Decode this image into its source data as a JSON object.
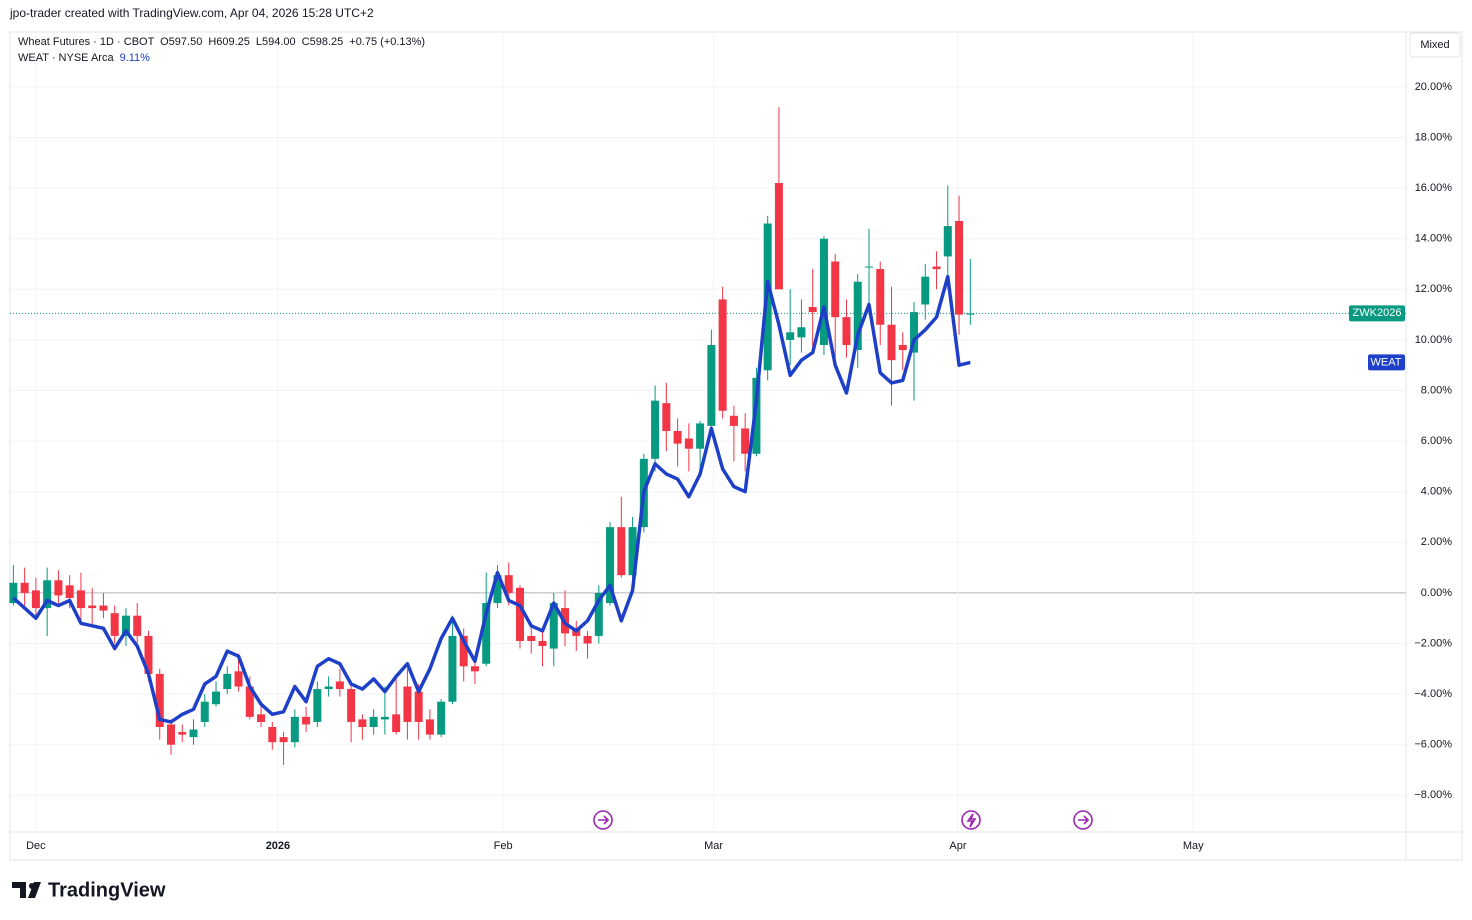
{
  "attribution": "jpo-trader created with TradingView.com, Apr 04, 2026 15:28 UTC+2",
  "footer": {
    "brand": "TradingView"
  },
  "chart_data": {
    "type": "candlestick",
    "legend": {
      "symbol": "Wheat Futures · 1D · CBOT",
      "open": "O597.50",
      "high": "H609.25",
      "low": "L594.00",
      "close": "C598.25",
      "change": "+0.75 (+0.13%)"
    },
    "scale_mode": "Mixed",
    "price_tag": "ZWK2026",
    "up_color": "#089981",
    "down_color": "#f23645",
    "price_line_color": "#089981",
    "x": [
      0,
      1,
      2,
      3,
      4,
      5,
      6,
      7,
      8,
      9,
      10,
      11,
      12,
      13,
      14,
      15,
      16,
      17,
      18,
      19,
      20,
      21,
      22,
      23,
      24,
      25,
      26,
      27,
      28,
      29,
      30,
      31,
      32,
      33,
      34,
      35,
      36,
      37,
      38,
      39,
      40,
      41,
      42,
      43,
      44,
      45,
      46,
      47,
      48,
      49,
      50,
      51,
      52,
      53,
      54,
      55,
      56,
      57,
      58,
      59,
      60,
      61,
      62,
      63,
      64,
      65,
      66,
      67,
      68,
      69,
      70,
      71,
      72,
      73,
      74,
      75,
      76,
      77,
      78,
      79,
      80,
      81,
      82,
      83,
      84,
      85
    ],
    "open": [
      -0.4,
      0.4,
      0.1,
      -0.6,
      0.5,
      0.3,
      0.1,
      -0.5,
      -0.5,
      -0.8,
      -1.7,
      -0.9,
      -1.7,
      -3.2,
      -5.2,
      -5.5,
      -5.7,
      -5.1,
      -4.4,
      -3.8,
      -3.1,
      -3.7,
      -4.8,
      -5.3,
      -5.7,
      -5.9,
      -4.9,
      -5.1,
      -3.8,
      -3.5,
      -3.8,
      -5.0,
      -5.3,
      -5.0,
      -4.8,
      -3.7,
      -3.9,
      -5.0,
      -5.6,
      -4.3,
      -1.7,
      -2.9,
      -2.8,
      -0.4,
      0.7,
      0.2,
      -1.7,
      -1.9,
      -2.2,
      -0.6,
      -1.4,
      -1.7,
      -1.7,
      -0.4,
      2.6,
      0.7,
      2.6,
      5.3,
      7.5,
      6.4,
      6.1,
      5.7,
      6.6,
      11.6,
      7.0,
      6.5,
      5.5,
      8.8,
      16.2,
      10.0,
      10.1,
      11.3,
      9.8,
      13.1,
      10.9,
      9.6,
      12.9,
      12.8,
      10.6,
      9.8,
      9.5,
      11.4,
      12.9,
      13.3,
      14.7,
      11.0
    ],
    "high": [
      1.1,
      1.0,
      0.6,
      1.0,
      0.9,
      0.7,
      0.8,
      0.2,
      0.0,
      -0.5,
      -0.6,
      -0.4,
      -1.5,
      -3.0,
      -5.0,
      -5.2,
      -5.0,
      -4.0,
      -3.5,
      -2.9,
      -2.4,
      -3.3,
      -4.4,
      -5.1,
      -5.5,
      -4.6,
      -4.5,
      -3.5,
      -3.3,
      -3.0,
      -3.5,
      -4.8,
      -4.6,
      -3.7,
      -3.3,
      -3.0,
      -3.6,
      -4.6,
      -4.2,
      -0.9,
      -1.4,
      -2.6,
      0.8,
      1.1,
      1.2,
      0.3,
      -1.2,
      -1.5,
      0.0,
      0.1,
      -1.1,
      -1.5,
      0.3,
      2.8,
      3.8,
      3.0,
      5.5,
      8.2,
      8.3,
      6.9,
      6.7,
      6.8,
      10.4,
      12.1,
      7.4,
      7.1,
      8.9,
      14.9,
      19.2,
      12.0,
      11.6,
      12.8,
      14.1,
      13.4,
      11.6,
      12.6,
      14.4,
      13.1,
      12.1,
      10.3,
      11.5,
      13.0,
      13.5,
      16.1,
      15.7,
      13.2
    ],
    "low": [
      -0.5,
      -0.6,
      -1.0,
      -1.7,
      -0.5,
      -0.6,
      -1.2,
      -1.3,
      -1.0,
      -2.0,
      -2.1,
      -2.0,
      -3.5,
      -5.8,
      -6.4,
      -5.9,
      -6.0,
      -5.3,
      -4.5,
      -4.0,
      -3.9,
      -5.0,
      -5.3,
      -6.2,
      -6.8,
      -6.1,
      -5.5,
      -5.3,
      -4.1,
      -4.1,
      -5.9,
      -5.8,
      -5.6,
      -5.6,
      -5.6,
      -5.8,
      -5.8,
      -5.8,
      -5.7,
      -4.4,
      -3.5,
      -3.6,
      -2.9,
      -0.6,
      -0.5,
      -2.2,
      -2.4,
      -2.9,
      -2.9,
      -2.1,
      -2.3,
      -2.6,
      -2.0,
      -0.5,
      0.6,
      0.3,
      2.4,
      4.8,
      5.6,
      5.0,
      4.8,
      4.9,
      6.3,
      6.9,
      5.2,
      4.8,
      5.4,
      8.4,
      12.0,
      9.0,
      9.5,
      9.6,
      9.4,
      9.3,
      9.3,
      8.9,
      11.2,
      9.8,
      7.4,
      8.8,
      7.6,
      10.8,
      12.0,
      12.0,
      10.2,
      10.6
    ],
    "close": [
      0.4,
      0.0,
      -0.6,
      0.5,
      -0.1,
      -0.2,
      -0.6,
      -0.6,
      -0.7,
      -1.7,
      -0.9,
      -1.7,
      -3.2,
      -5.3,
      -6.0,
      -5.6,
      -5.4,
      -4.3,
      -3.9,
      -3.2,
      -3.7,
      -4.9,
      -5.1,
      -5.9,
      -5.9,
      -4.9,
      -5.2,
      -3.8,
      -3.7,
      -3.8,
      -5.1,
      -5.3,
      -4.9,
      -4.9,
      -5.5,
      -5.1,
      -5.1,
      -5.6,
      -4.3,
      -1.7,
      -2.9,
      -3.1,
      -0.4,
      0.7,
      0.0,
      -1.9,
      -1.9,
      -2.1,
      -0.4,
      -1.6,
      -1.7,
      -2.0,
      0.0,
      2.6,
      0.7,
      2.6,
      5.3,
      7.6,
      6.4,
      5.9,
      5.7,
      6.7,
      9.8,
      7.2,
      6.6,
      5.5,
      8.5,
      14.6,
      12.0,
      10.3,
      10.5,
      11.1,
      14.0,
      10.9,
      9.8,
      12.3,
      12.9,
      10.6,
      9.2,
      9.6,
      11.1,
      12.5,
      12.8,
      14.5,
      11.0,
      11.05
    ],
    "line": {
      "name": "WEAT · NYSE Arca",
      "tag": "WEAT",
      "color": "#1e40c8",
      "value_label": "9.11%",
      "values": [
        -0.2,
        -0.6,
        -1.0,
        -0.3,
        -0.5,
        -0.3,
        -1.2,
        -1.3,
        -1.4,
        -2.2,
        -1.5,
        -2.1,
        -3.2,
        -5.0,
        -5.1,
        -4.8,
        -4.6,
        -3.6,
        -3.3,
        -2.3,
        -2.5,
        -3.7,
        -4.4,
        -4.8,
        -4.7,
        -3.7,
        -4.3,
        -2.9,
        -2.6,
        -2.8,
        -3.6,
        -3.8,
        -3.4,
        -3.9,
        -3.3,
        -2.8,
        -3.9,
        -3.0,
        -1.8,
        -1.0,
        -1.9,
        -2.7,
        -0.8,
        0.8,
        -0.3,
        -0.5,
        -1.3,
        -1.5,
        -0.4,
        -1.2,
        -1.5,
        -1.1,
        -0.3,
        0.3,
        -1.1,
        0.1,
        4.0,
        5.1,
        4.7,
        4.5,
        3.8,
        4.7,
        6.5,
        4.9,
        4.2,
        4.0,
        7.6,
        12.3,
        10.6,
        8.6,
        9.2,
        9.5,
        11.3,
        9.0,
        7.9,
        10.2,
        11.4,
        8.7,
        8.3,
        8.4,
        10.0,
        10.4,
        10.9,
        12.5,
        9.0,
        9.11
      ]
    },
    "xlim": [
      -0.3,
      123.7
    ],
    "xticks": [
      {
        "value": 2,
        "label": "Dec"
      },
      {
        "value": 23.5,
        "label": "2026"
      },
      {
        "value": 43.5,
        "label": "Feb"
      },
      {
        "value": 62.2,
        "label": "Mar"
      },
      {
        "value": 83.9,
        "label": "Apr"
      },
      {
        "value": 104.8,
        "label": "May"
      }
    ],
    "ylim": [
      -9.45,
      22.17
    ],
    "yticks": [
      {
        "value": 20,
        "label": "20.00%"
      },
      {
        "value": 18,
        "label": "18.00%"
      },
      {
        "value": 16,
        "label": "16.00%"
      },
      {
        "value": 14,
        "label": "14.00%"
      },
      {
        "value": 12,
        "label": "12.00%"
      },
      {
        "value": 10,
        "label": "10.00%"
      },
      {
        "value": 8,
        "label": "8.00%"
      },
      {
        "value": 6,
        "label": "6.00%"
      },
      {
        "value": 4,
        "label": "4.00%"
      },
      {
        "value": 2,
        "label": "2.00%"
      },
      {
        "value": 0,
        "label": "0.00%"
      },
      {
        "value": -2,
        "label": "−2.00%"
      },
      {
        "value": -4,
        "label": "−4.00%"
      },
      {
        "value": -6,
        "label": "−6.00%"
      },
      {
        "value": -8,
        "label": "−8.00%"
      }
    ],
    "grid": true
  }
}
